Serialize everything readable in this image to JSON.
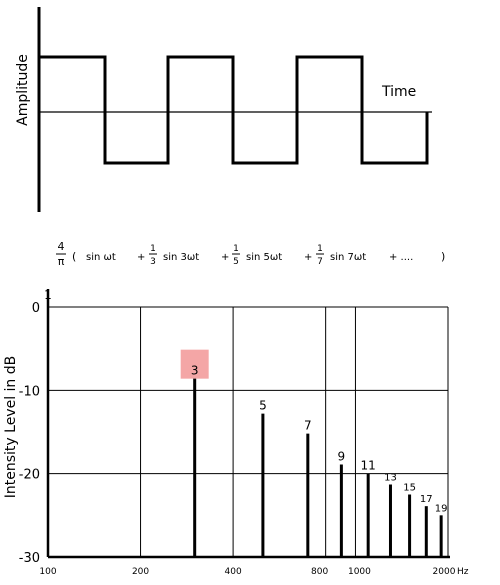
{
  "waveform": {
    "y_label": "Amplitude",
    "x_label": "Time"
  },
  "formula": {
    "lead_num": "4",
    "lead_den": "π",
    "open": "(",
    "terms": [
      {
        "prefix": "",
        "num": "",
        "den": "",
        "text": "sin ωt"
      },
      {
        "prefix": "+",
        "num": "1",
        "den": "3",
        "text": "sin 3ωt"
      },
      {
        "prefix": "+",
        "num": "1",
        "den": "5",
        "text": "sin 5ωt"
      },
      {
        "prefix": "+",
        "num": "1",
        "den": "7",
        "text": "sin 7ωt"
      }
    ],
    "tail": "+ ....",
    "close": ")"
  },
  "chart_data": {
    "type": "bar",
    "ylabel": "Intensity Level in dB",
    "x_unit": "Hz",
    "x_scale": "log",
    "xlim": [
      100,
      2000
    ],
    "ylim": [
      -30,
      0
    ],
    "y_ticks": [
      "0",
      "-10",
      "-20",
      "-30"
    ],
    "x_ticks": [
      "100",
      "200",
      "400",
      "800",
      "1000",
      "2000"
    ],
    "axis_top_label": "1",
    "grid": true,
    "highlight_color": "#f4a6a6",
    "highlighted_harmonic": "3",
    "harmonics": [
      {
        "label": "3",
        "freq": 300,
        "db": -8.6
      },
      {
        "label": "5",
        "freq": 500,
        "db": -12.8
      },
      {
        "label": "7",
        "freq": 700,
        "db": -15.2
      },
      {
        "label": "9",
        "freq": 900,
        "db": -18.9
      },
      {
        "label": "11",
        "freq": 1100,
        "db": -20.0
      },
      {
        "label": "13",
        "freq": 1300,
        "db": -21.3
      },
      {
        "label": "15",
        "freq": 1500,
        "db": -22.5
      },
      {
        "label": "17",
        "freq": 1700,
        "db": -23.9
      },
      {
        "label": "19",
        "freq": 1900,
        "db": -25.0
      }
    ]
  }
}
